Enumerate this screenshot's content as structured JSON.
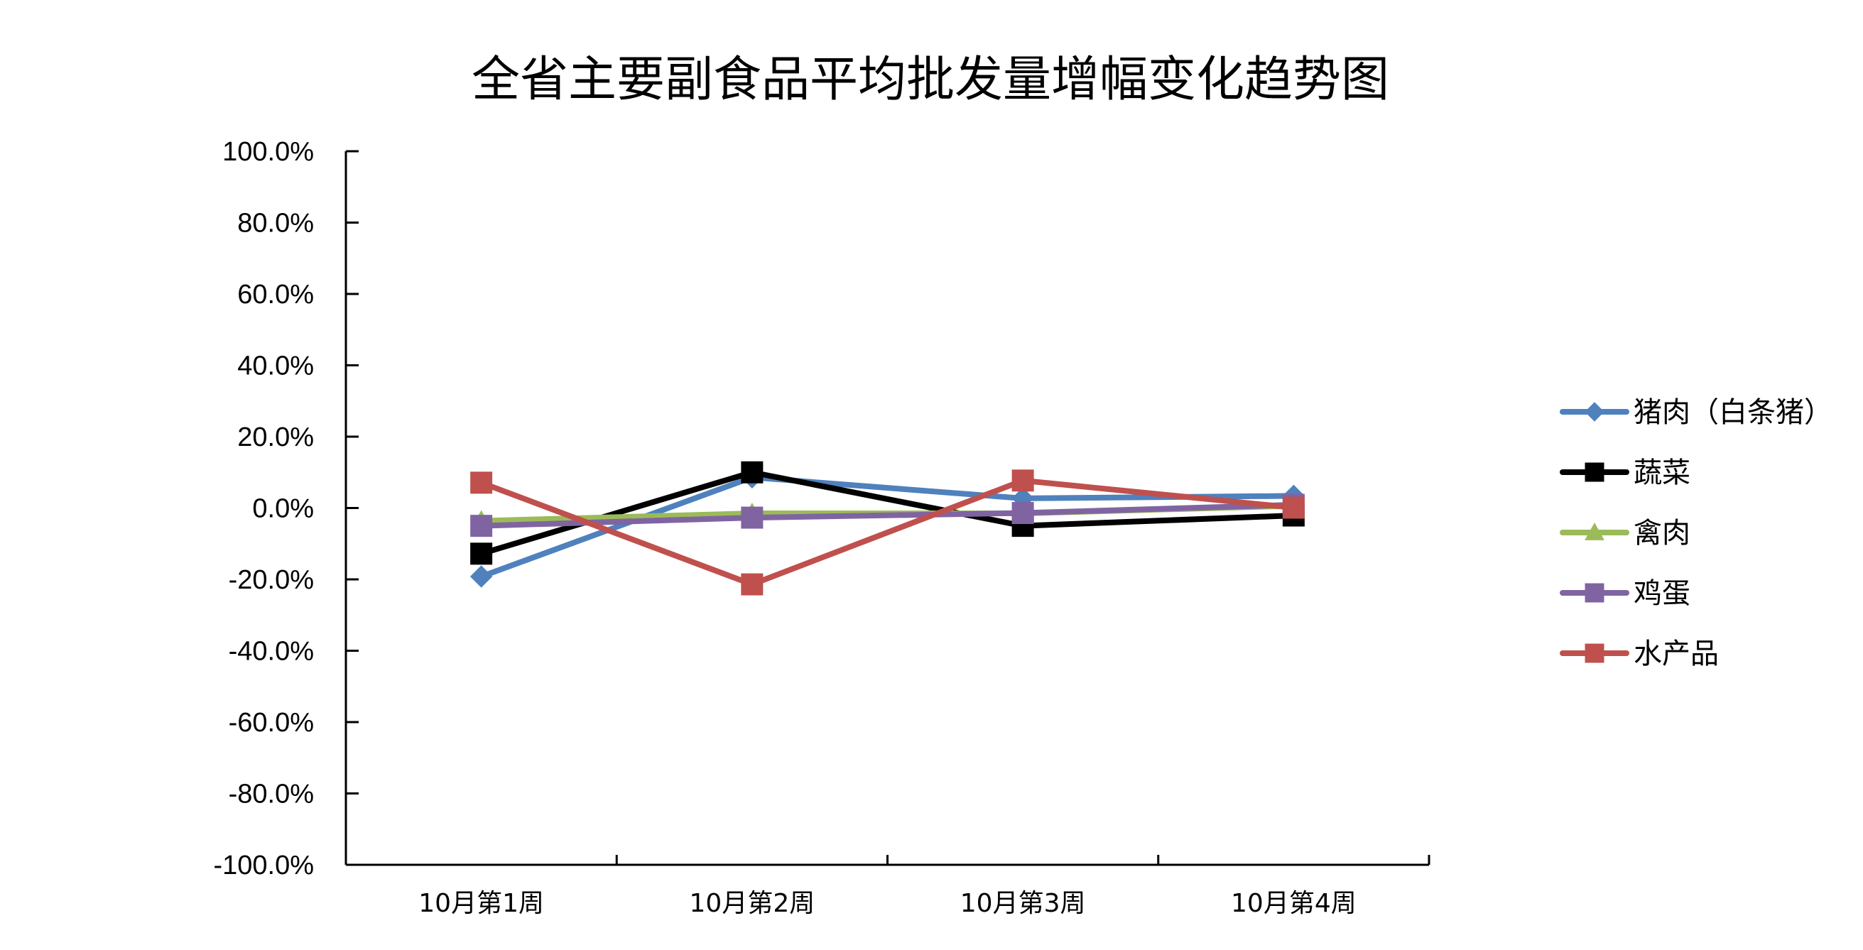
{
  "chart_data": {
    "type": "line",
    "title": "全省主要副食品平均批发量增幅变化趋势图",
    "categories": [
      "10月第1周",
      "10月第2周",
      "10月第3周",
      "10月第4周"
    ],
    "ylim": [
      -100,
      100
    ],
    "y_ticks": [
      100,
      80,
      60,
      40,
      20,
      0,
      -20,
      -40,
      -60,
      -80,
      -100
    ],
    "y_tick_labels": [
      "100.0%",
      "80.0%",
      "60.0%",
      "40.0%",
      "20.0%",
      "0.0%",
      "-20.0%",
      "-40.0%",
      "-60.0%",
      "-80.0%",
      "-100.0%"
    ],
    "grid": false,
    "legend_position": "right",
    "series": [
      {
        "name": "猪肉（白条猪）",
        "color": "#4F81BD",
        "marker": "diamond",
        "values": [
          -19.2,
          8.6,
          2.7,
          3.4
        ]
      },
      {
        "name": "蔬菜",
        "color": "#000000",
        "marker": "square",
        "values": [
          -12.8,
          10.0,
          -5.0,
          -2.1
        ]
      },
      {
        "name": "禽肉",
        "color": "#9BBB59",
        "marker": "triangle",
        "values": [
          -3.6,
          -1.5,
          -1.5,
          0.6
        ]
      },
      {
        "name": "鸡蛋",
        "color": "#8064A2",
        "marker": "square",
        "values": [
          -5.0,
          -2.7,
          -1.4,
          0.9
        ]
      },
      {
        "name": "水产品",
        "color": "#C0504D",
        "marker": "square",
        "values": [
          7.1,
          -21.4,
          7.7,
          0.1
        ]
      }
    ]
  }
}
